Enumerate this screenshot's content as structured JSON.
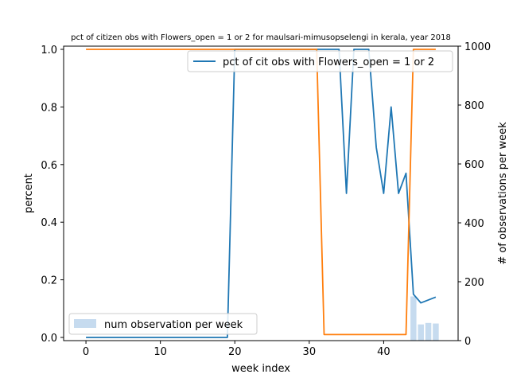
{
  "chart_data": {
    "type": "line",
    "title": "pct of citizen obs with Flowers_open = 1 or 2 for maulsari-mimusopselengi in kerala, year 2018",
    "xlabel": "week index",
    "ylabel": "percent",
    "ylabel_right": "# of observations per week",
    "xlim": [
      -3,
      50
    ],
    "ylim": [
      0,
      1
    ],
    "ylim_right": [
      0,
      1000
    ],
    "xticks": [
      "0",
      "10",
      "20",
      "30",
      "40"
    ],
    "yticks": [
      "0.0",
      "0.2",
      "0.4",
      "0.6",
      "0.8",
      "1.0"
    ],
    "yticks_right": [
      "0",
      "200",
      "400",
      "600",
      "800",
      "1000"
    ],
    "grid": false,
    "legend_top": {
      "position": "top-right",
      "label": "pct of cit obs with Flowers_open = 1 or 2"
    },
    "legend_bottom": {
      "position": "bottom-left",
      "label": "num observation per week"
    },
    "colors": {
      "pct_line": "#1f77b4",
      "orange_line": "#ff7f0e",
      "bars": "#c6dbef"
    },
    "series": [
      {
        "name": "pct of cit obs with Flowers_open = 1 or 2",
        "x": [
          0,
          1,
          2,
          3,
          4,
          5,
          6,
          7,
          8,
          9,
          10,
          11,
          12,
          13,
          14,
          15,
          16,
          17,
          18,
          19,
          20,
          21,
          22,
          23,
          24,
          25,
          26,
          27,
          28,
          29,
          30,
          31,
          32,
          33,
          34,
          35,
          36,
          37,
          38,
          39,
          40,
          41,
          42,
          43,
          44,
          45,
          46,
          47
        ],
        "values": [
          0,
          0,
          0,
          0,
          0,
          0,
          0,
          0,
          0,
          0,
          0,
          0,
          0,
          0,
          0,
          0,
          0,
          0,
          0,
          0,
          1,
          1,
          1,
          1,
          1,
          1,
          1,
          1,
          1,
          1,
          1,
          1,
          1,
          1,
          1,
          0.5,
          1,
          1,
          1,
          0.66,
          0.5,
          0.8,
          0.5,
          0.57,
          0.15,
          0.12,
          0.13,
          0.14
        ]
      },
      {
        "x": [
          0,
          1,
          2,
          3,
          4,
          5,
          6,
          7,
          8,
          9,
          10,
          11,
          12,
          13,
          14,
          15,
          16,
          17,
          18,
          19,
          20,
          21,
          22,
          23,
          24,
          25,
          26,
          27,
          28,
          29,
          30,
          31,
          32,
          33,
          34,
          35,
          36,
          37,
          38,
          39,
          40,
          41,
          42,
          43,
          44,
          45,
          46,
          47
        ],
        "values": [
          1,
          1,
          1,
          1,
          1,
          1,
          1,
          1,
          1,
          1,
          1,
          1,
          1,
          1,
          1,
          1,
          1,
          1,
          1,
          1,
          1,
          1,
          1,
          1,
          1,
          1,
          1,
          1,
          1,
          1,
          1,
          1,
          0.01,
          0.01,
          0.01,
          0.01,
          0.01,
          0.01,
          0.01,
          0.01,
          0.01,
          0.01,
          0.01,
          0.01,
          1,
          1,
          1,
          1
        ]
      },
      {
        "name": "num observation per week",
        "type": "bar",
        "axis": "right",
        "x": [
          44,
          45,
          46,
          47
        ],
        "values": [
          150,
          55,
          60,
          58
        ]
      }
    ]
  }
}
